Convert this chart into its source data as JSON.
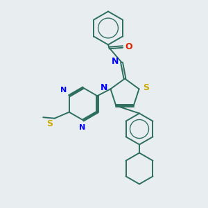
{
  "bg_color": "#e8edf0",
  "bond_color": "#2d6e5e",
  "bond_width": 1.4,
  "dbo": 0.06,
  "figsize": [
    3.0,
    3.0
  ],
  "dpi": 100,
  "xlim": [
    0,
    10
  ],
  "ylim": [
    0,
    10
  ]
}
